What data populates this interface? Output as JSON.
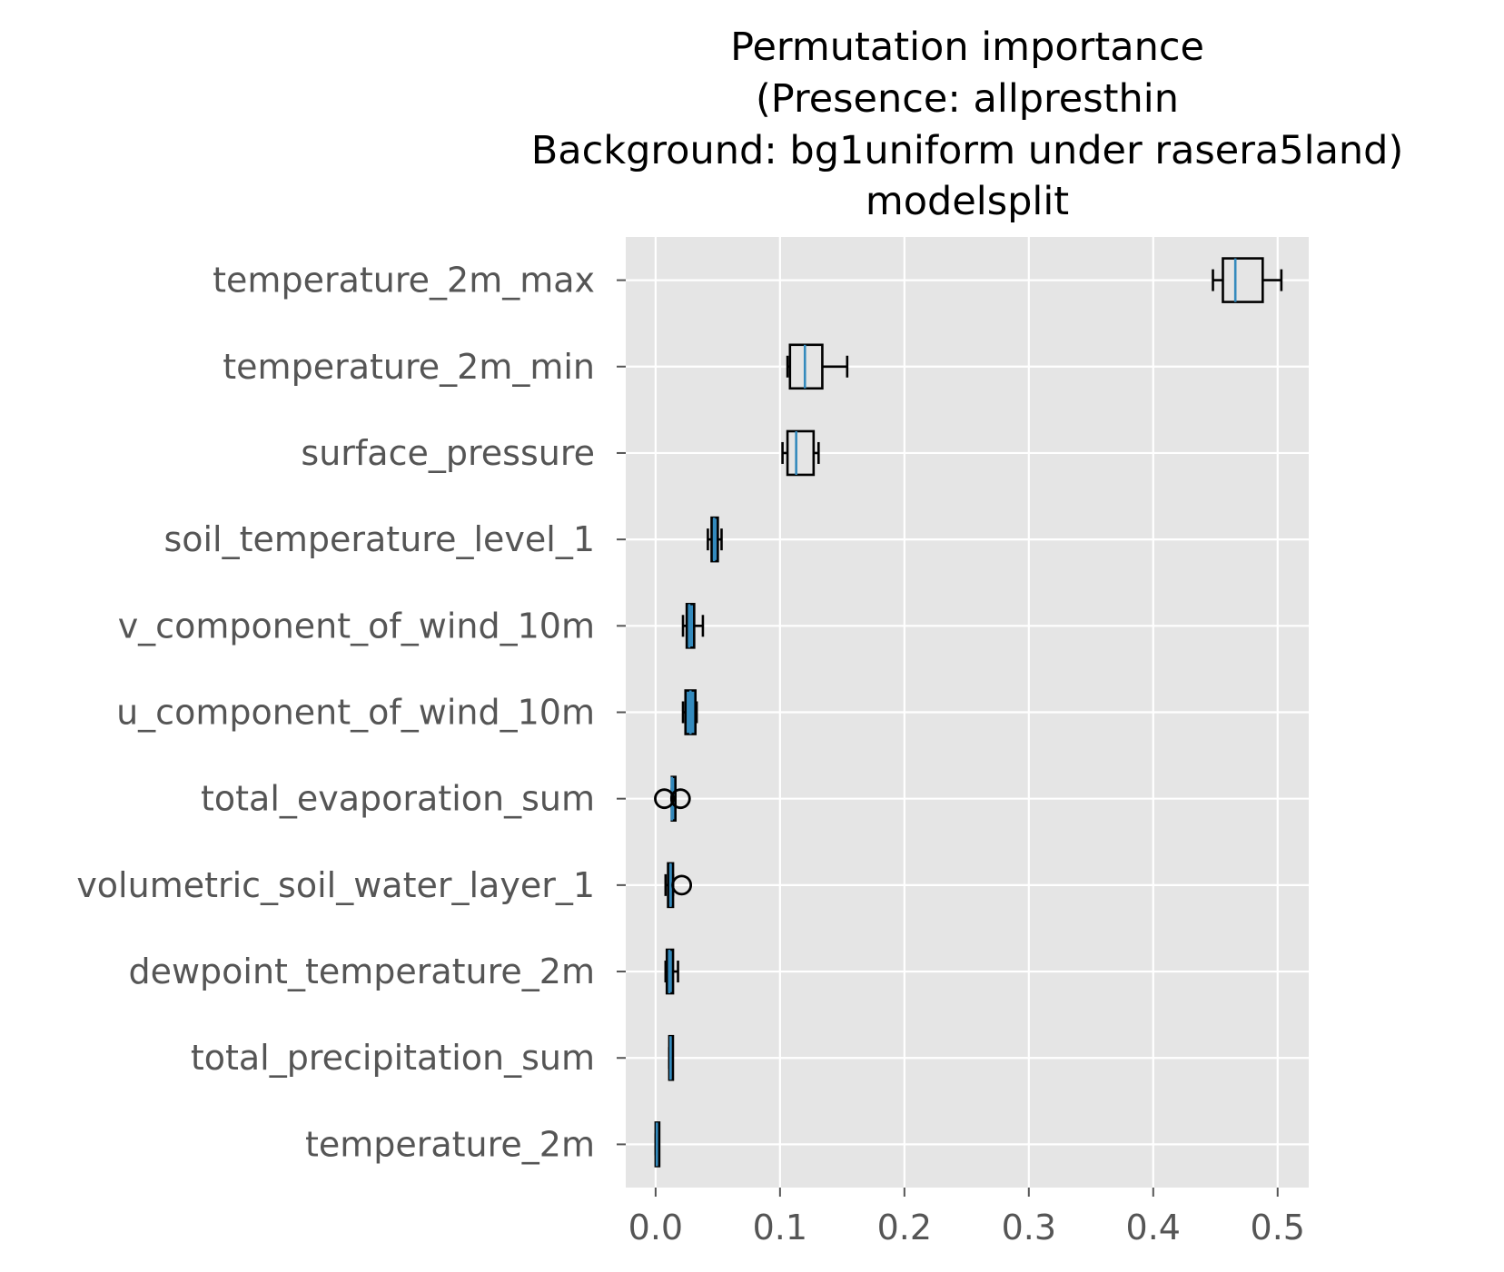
{
  "chart_data": {
    "type": "boxplot",
    "orientation": "horizontal",
    "title_lines": [
      "Permutation importance",
      "(Presence: allpresthin",
      "Background: bg1uniform under rasera5land)",
      "modelsplit"
    ],
    "xlabel": "",
    "ylabel": "",
    "xlim": [
      -0.024,
      0.525
    ],
    "xticks": [
      0.0,
      0.1,
      0.2,
      0.3,
      0.4,
      0.5
    ],
    "xtick_labels": [
      "0.0",
      "0.1",
      "0.2",
      "0.3",
      "0.4",
      "0.5"
    ],
    "grid": true,
    "categories": [
      "temperature_2m_max",
      "temperature_2m_min",
      "surface_pressure",
      "soil_temperature_level_1",
      "v_component_of_wind_10m",
      "u_component_of_wind_10m",
      "total_evaporation_sum",
      "volumetric_soil_water_layer_1",
      "dewpoint_temperature_2m",
      "total_precipitation_sum",
      "temperature_2m"
    ],
    "boxes": [
      {
        "whislo": 0.448,
        "q1": 0.456,
        "med": 0.466,
        "q3": 0.488,
        "whishi": 0.503,
        "fliers": []
      },
      {
        "whislo": 0.106,
        "q1": 0.108,
        "med": 0.12,
        "q3": 0.134,
        "whishi": 0.154,
        "fliers": []
      },
      {
        "whislo": 0.102,
        "q1": 0.106,
        "med": 0.113,
        "q3": 0.127,
        "whishi": 0.131,
        "fliers": []
      },
      {
        "whislo": 0.042,
        "q1": 0.045,
        "med": 0.047,
        "q3": 0.05,
        "whishi": 0.053,
        "fliers": []
      },
      {
        "whislo": 0.022,
        "q1": 0.025,
        "med": 0.027,
        "q3": 0.031,
        "whishi": 0.038,
        "fliers": []
      },
      {
        "whislo": 0.022,
        "q1": 0.024,
        "med": 0.028,
        "q3": 0.032,
        "whishi": 0.033,
        "fliers": []
      },
      {
        "whislo": 0.013,
        "q1": 0.013,
        "med": 0.013,
        "q3": 0.014,
        "whishi": 0.014,
        "fliers": [
          0.007,
          0.02
        ]
      },
      {
        "whislo": 0.008,
        "q1": 0.01,
        "med": 0.012,
        "q3": 0.014,
        "whishi": 0.014,
        "fliers": [
          0.021
        ]
      },
      {
        "whislo": 0.008,
        "q1": 0.009,
        "med": 0.011,
        "q3": 0.014,
        "whishi": 0.018,
        "fliers": []
      },
      {
        "whislo": 0.011,
        "q1": 0.011,
        "med": 0.012,
        "q3": 0.013,
        "whishi": 0.013,
        "fliers": []
      },
      {
        "whislo": 0.0,
        "q1": 0.0,
        "med": 0.001,
        "q3": 0.002,
        "whishi": 0.002,
        "fliers": []
      }
    ],
    "colors": {
      "plot_background": "#e5e5e5",
      "grid": "#ffffff",
      "box_face": "#348abd",
      "box_edge": "#000000",
      "median": "#348abd",
      "whisker": "#000000",
      "tick_label": "#555555"
    }
  }
}
